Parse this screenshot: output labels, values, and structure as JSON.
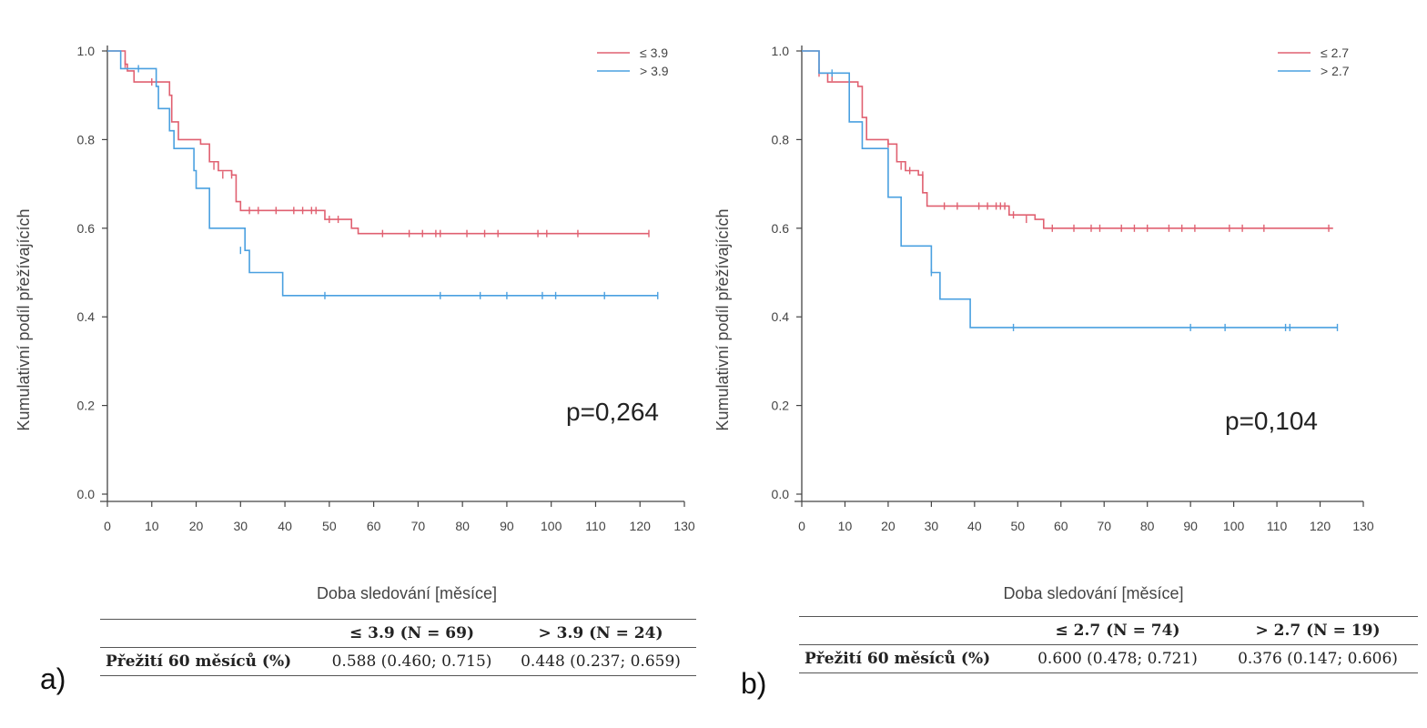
{
  "chart_data": [
    {
      "type": "line",
      "panel_label": "a)",
      "xlabel": "Doba sledování [měsíce]",
      "ylabel": "Kumulativní podíl přežívajících",
      "xlim": [
        0,
        130
      ],
      "ylim": [
        0,
        1.0
      ],
      "xticks": [
        0,
        10,
        20,
        30,
        40,
        50,
        60,
        70,
        80,
        90,
        100,
        110,
        120,
        130
      ],
      "yticks": [
        0.0,
        0.2,
        0.4,
        0.6,
        0.8,
        1.0
      ],
      "ytick_labels": [
        "0.0",
        "0.2",
        "0.4",
        "0.6",
        "0.8",
        "1.0"
      ],
      "grid": false,
      "legend_position": "top-right",
      "annotation": "p=0,264",
      "series": [
        {
          "name": "≤ 3.9",
          "color": "#e06070",
          "steps": [
            [
              0,
              1.0
            ],
            [
              4,
              0.97
            ],
            [
              4.5,
              0.955
            ],
            [
              6,
              0.93
            ],
            [
              14,
              0.9
            ],
            [
              14.5,
              0.84
            ],
            [
              16,
              0.8
            ],
            [
              21,
              0.79
            ],
            [
              23,
              0.75
            ],
            [
              25,
              0.73
            ],
            [
              28,
              0.72
            ],
            [
              29,
              0.66
            ],
            [
              30,
              0.64
            ],
            [
              49,
              0.62
            ],
            [
              55,
              0.6
            ],
            [
              56.5,
              0.588
            ],
            [
              122,
              0.588
            ]
          ],
          "censors": [
            [
              4,
              0.97
            ],
            [
              10,
              0.93
            ],
            [
              24,
              0.74
            ],
            [
              26,
              0.72
            ],
            [
              28,
              0.72
            ],
            [
              32,
              0.64
            ],
            [
              34,
              0.64
            ],
            [
              38,
              0.64
            ],
            [
              42,
              0.64
            ],
            [
              44,
              0.64
            ],
            [
              46,
              0.64
            ],
            [
              47,
              0.64
            ],
            [
              50,
              0.62
            ],
            [
              52,
              0.62
            ],
            [
              62,
              0.588
            ],
            [
              68,
              0.588
            ],
            [
              71,
              0.588
            ],
            [
              74,
              0.588
            ],
            [
              75,
              0.588
            ],
            [
              81,
              0.588
            ],
            [
              85,
              0.588
            ],
            [
              88,
              0.588
            ],
            [
              97,
              0.588
            ],
            [
              99,
              0.588
            ],
            [
              106,
              0.588
            ],
            [
              122,
              0.588
            ]
          ]
        },
        {
          "name": "> 3.9",
          "color": "#4aa0e0",
          "steps": [
            [
              0,
              1.0
            ],
            [
              3,
              0.96
            ],
            [
              11,
              0.92
            ],
            [
              11.5,
              0.87
            ],
            [
              13,
              0.87
            ],
            [
              14,
              0.82
            ],
            [
              15,
              0.78
            ],
            [
              19,
              0.78
            ],
            [
              19.5,
              0.73
            ],
            [
              20,
              0.69
            ],
            [
              22,
              0.69
            ],
            [
              23,
              0.6
            ],
            [
              30,
              0.6
            ],
            [
              31,
              0.55
            ],
            [
              32,
              0.5
            ],
            [
              39,
              0.5
            ],
            [
              39.5,
              0.448
            ],
            [
              124,
              0.448
            ]
          ],
          "censors": [
            [
              7,
              0.96
            ],
            [
              30,
              0.55
            ],
            [
              49,
              0.448
            ],
            [
              75,
              0.448
            ],
            [
              84,
              0.448
            ],
            [
              90,
              0.448
            ],
            [
              98,
              0.448
            ],
            [
              101,
              0.448
            ],
            [
              112,
              0.448
            ],
            [
              124,
              0.448
            ]
          ]
        }
      ],
      "table": {
        "header": [
          "",
          "≤ 3.9 (N = 69)",
          "> 3.9 (N = 24)"
        ],
        "rows": [
          [
            "Přežití 60 měsíců (%)",
            "0.588 (0.460; 0.715)",
            "0.448 (0.237; 0.659)"
          ]
        ]
      }
    },
    {
      "type": "line",
      "panel_label": "b)",
      "xlabel": "Doba sledování [měsíce]",
      "ylabel": "Kumulativní podíl přežívajících",
      "xlim": [
        0,
        130
      ],
      "ylim": [
        0,
        1.0
      ],
      "xticks": [
        0,
        10,
        20,
        30,
        40,
        50,
        60,
        70,
        80,
        90,
        100,
        110,
        120,
        130
      ],
      "yticks": [
        0.0,
        0.2,
        0.4,
        0.6,
        0.8,
        1.0
      ],
      "ytick_labels": [
        "0.0",
        "0.2",
        "0.4",
        "0.6",
        "0.8",
        "1.0"
      ],
      "grid": false,
      "legend_position": "top-right",
      "annotation": "p=0,104",
      "series": [
        {
          "name": "≤ 2.7",
          "color": "#e06070",
          "steps": [
            [
              0,
              1.0
            ],
            [
              4,
              0.95
            ],
            [
              6,
              0.93
            ],
            [
              12,
              0.93
            ],
            [
              13,
              0.92
            ],
            [
              14,
              0.85
            ],
            [
              15,
              0.8
            ],
            [
              19,
              0.8
            ],
            [
              20,
              0.79
            ],
            [
              22,
              0.75
            ],
            [
              24,
              0.73
            ],
            [
              27,
              0.72
            ],
            [
              28,
              0.68
            ],
            [
              29,
              0.65
            ],
            [
              48,
              0.63
            ],
            [
              54,
              0.62
            ],
            [
              56,
              0.6
            ],
            [
              123,
              0.6
            ]
          ],
          "censors": [
            [
              4,
              0.95
            ],
            [
              7,
              0.94
            ],
            [
              20,
              0.79
            ],
            [
              23,
              0.74
            ],
            [
              25,
              0.73
            ],
            [
              28,
              0.72
            ],
            [
              33,
              0.65
            ],
            [
              36,
              0.65
            ],
            [
              41,
              0.65
            ],
            [
              43,
              0.65
            ],
            [
              45,
              0.65
            ],
            [
              46,
              0.65
            ],
            [
              47,
              0.65
            ],
            [
              49,
              0.63
            ],
            [
              52,
              0.62
            ],
            [
              58,
              0.6
            ],
            [
              63,
              0.6
            ],
            [
              67,
              0.6
            ],
            [
              69,
              0.6
            ],
            [
              74,
              0.6
            ],
            [
              77,
              0.6
            ],
            [
              80,
              0.6
            ],
            [
              85,
              0.6
            ],
            [
              88,
              0.6
            ],
            [
              91,
              0.6
            ],
            [
              99,
              0.6
            ],
            [
              102,
              0.6
            ],
            [
              107,
              0.6
            ],
            [
              122,
              0.6
            ]
          ]
        },
        {
          "name": "> 2.7",
          "color": "#4aa0e0",
          "steps": [
            [
              0,
              1.0
            ],
            [
              4,
              0.95
            ],
            [
              10,
              0.95
            ],
            [
              11,
              0.84
            ],
            [
              13,
              0.84
            ],
            [
              14,
              0.78
            ],
            [
              19,
              0.78
            ],
            [
              20,
              0.67
            ],
            [
              22,
              0.67
            ],
            [
              23,
              0.56
            ],
            [
              29,
              0.56
            ],
            [
              30,
              0.5
            ],
            [
              31,
              0.5
            ],
            [
              32,
              0.44
            ],
            [
              38,
              0.44
            ],
            [
              39,
              0.376
            ],
            [
              124,
              0.376
            ]
          ],
          "censors": [
            [
              7,
              0.95
            ],
            [
              30,
              0.5
            ],
            [
              49,
              0.376
            ],
            [
              90,
              0.376
            ],
            [
              98,
              0.376
            ],
            [
              112,
              0.376
            ],
            [
              113,
              0.376
            ],
            [
              124,
              0.376
            ]
          ]
        }
      ],
      "table": {
        "header": [
          "",
          "≤ 2.7 (N = 74)",
          "> 2.7 (N = 19)"
        ],
        "rows": [
          [
            "Přežití 60 měsíců (%)",
            "0.600 (0.478; 0.721)",
            "0.376 (0.147; 0.606)"
          ]
        ]
      }
    }
  ]
}
